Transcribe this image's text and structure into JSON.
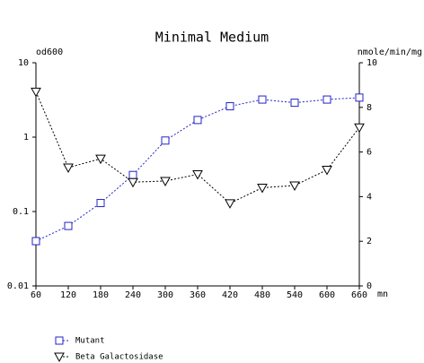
{
  "chart_data": {
    "type": "line",
    "title": "Minimal Medium",
    "ylabel": "od600",
    "y2label": "nmole/min/mg",
    "xlabel": "mn",
    "x": [
      60,
      120,
      180,
      240,
      300,
      360,
      420,
      480,
      540,
      600,
      660
    ],
    "xlim": [
      60,
      660
    ],
    "xticks": [
      60,
      120,
      180,
      240,
      300,
      360,
      420,
      480,
      540,
      600,
      660
    ],
    "yscale": "log",
    "ylim": [
      0.01,
      10
    ],
    "yticks": [
      0.01,
      0.1,
      1,
      10
    ],
    "y2lim": [
      0,
      10
    ],
    "y2ticks": [
      0,
      2,
      4,
      6,
      8,
      10
    ],
    "grid": false,
    "legend": "bottom-left",
    "series": [
      {
        "name": "Mutant",
        "color": "#2323c8",
        "marker": "square",
        "values": [
          0.04,
          0.064,
          0.13,
          0.31,
          0.9,
          1.7,
          2.6,
          3.2,
          2.9,
          3.2,
          3.4
        ]
      },
      {
        "name": "Beta Galactosidase",
        "color": "#000000",
        "marker": "triangle-down",
        "axis": "y2",
        "values": [
          8.7,
          5.3,
          5.7,
          4.65,
          4.7,
          5.0,
          3.7,
          4.4,
          4.5,
          5.2,
          7.1
        ]
      }
    ]
  }
}
